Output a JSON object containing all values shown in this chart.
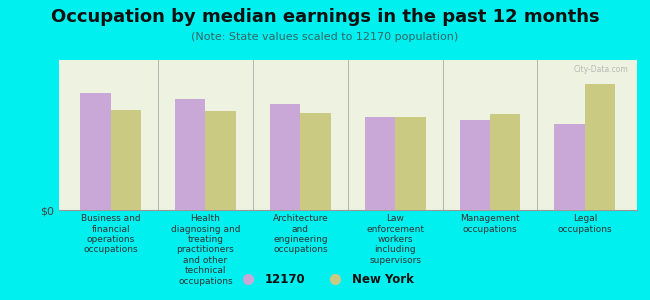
{
  "title": "Occupation by median earnings in the past 12 months",
  "subtitle": "(Note: State values scaled to 12170 population)",
  "categories": [
    "Business and\nfinancial\noperations\noccupations",
    "Health\ndiagnosing and\ntreating\npractitioners\nand other\ntechnical\noccupations",
    "Architecture\nand\nengineering\noccupations",
    "Law\nenforcement\nworkers\nincluding\nsupervisors",
    "Management\noccupations",
    "Legal\noccupations"
  ],
  "values_12170": [
    0.82,
    0.78,
    0.74,
    0.65,
    0.63,
    0.6
  ],
  "values_ny": [
    0.7,
    0.69,
    0.68,
    0.65,
    0.67,
    0.88
  ],
  "color_12170": "#c9a8d8",
  "color_ny": "#caca82",
  "background_color": "#00efef",
  "plot_bg": "#eef2e0",
  "bar_width": 0.32,
  "ylabel": "$0",
  "legend_label_1": "12170",
  "legend_label_2": "New York",
  "watermark": "City-Data.com",
  "title_fontsize": 13,
  "subtitle_fontsize": 8,
  "tick_fontsize": 6.5
}
